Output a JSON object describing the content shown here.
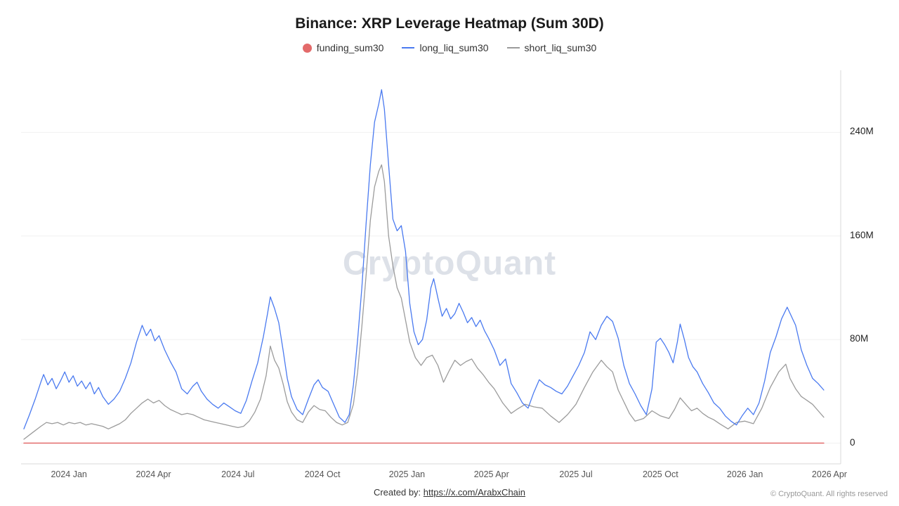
{
  "title": "Binance: XRP Leverage Heatmap (Sum 30D)",
  "watermark": "CryptoQuant",
  "legend": [
    {
      "label": "funding_sum30",
      "color": "#e36a6a",
      "marker": "circle"
    },
    {
      "label": "long_liq_sum30",
      "color": "#4a7af0",
      "marker": "line"
    },
    {
      "label": "short_liq_sum30",
      "color": "#9b9b9b",
      "marker": "line"
    }
  ],
  "footer": {
    "created_by_prefix": "Created by:",
    "created_by_link": "https://x.com/ArabxChain",
    "copyright": "© CryptoQuant. All rights reserved"
  },
  "chart_data": {
    "type": "line",
    "title": "Binance: XRP Leverage Heatmap (Sum 30D)",
    "x_unit": "months since 2023-11",
    "xlim": [
      0.3,
      29.4
    ],
    "ylim": [
      -16,
      288
    ],
    "grid": true,
    "legend_position": "top",
    "y_axis_side": "right",
    "y_ticks": [
      {
        "value": 0,
        "label": "0"
      },
      {
        "value": 80,
        "label": "80M"
      },
      {
        "value": 160,
        "label": "160M"
      },
      {
        "value": 240,
        "label": "240M"
      }
    ],
    "x_tick_positions": [
      2,
      5,
      8,
      11,
      14,
      17,
      20,
      23,
      26,
      29
    ],
    "x_tick_labels": [
      "2024 Jan",
      "2024 Apr",
      "2024 Jul",
      "2024 Oct",
      "2025 Jan",
      "2025 Apr",
      "2025 Jul",
      "2025 Oct",
      "2026 Jan",
      "2026 Apr"
    ],
    "value_unit": "M",
    "series": [
      {
        "name": "funding_sum30",
        "color": "#e36a6a",
        "width": 1.5,
        "points": [
          [
            0.4,
            0
          ],
          [
            28.8,
            0
          ]
        ]
      },
      {
        "name": "long_liq_sum30",
        "color": "#4a7af0",
        "width": 1.3,
        "points": [
          [
            0.4,
            11
          ],
          [
            0.6,
            22
          ],
          [
            0.8,
            34
          ],
          [
            1.0,
            47
          ],
          [
            1.1,
            53
          ],
          [
            1.25,
            45
          ],
          [
            1.4,
            50
          ],
          [
            1.55,
            42
          ],
          [
            1.7,
            48
          ],
          [
            1.85,
            55
          ],
          [
            2.0,
            47
          ],
          [
            2.15,
            52
          ],
          [
            2.3,
            44
          ],
          [
            2.45,
            48
          ],
          [
            2.6,
            42
          ],
          [
            2.75,
            47
          ],
          [
            2.9,
            38
          ],
          [
            3.05,
            43
          ],
          [
            3.2,
            36
          ],
          [
            3.4,
            30
          ],
          [
            3.6,
            34
          ],
          [
            3.8,
            40
          ],
          [
            4.0,
            50
          ],
          [
            4.2,
            62
          ],
          [
            4.4,
            78
          ],
          [
            4.6,
            91
          ],
          [
            4.75,
            83
          ],
          [
            4.9,
            88
          ],
          [
            5.05,
            79
          ],
          [
            5.2,
            83
          ],
          [
            5.4,
            72
          ],
          [
            5.6,
            63
          ],
          [
            5.8,
            55
          ],
          [
            6.0,
            42
          ],
          [
            6.2,
            38
          ],
          [
            6.4,
            44
          ],
          [
            6.55,
            47
          ],
          [
            6.7,
            40
          ],
          [
            6.9,
            34
          ],
          [
            7.1,
            30
          ],
          [
            7.3,
            27
          ],
          [
            7.5,
            31
          ],
          [
            7.7,
            28
          ],
          [
            7.9,
            25
          ],
          [
            8.1,
            23
          ],
          [
            8.3,
            33
          ],
          [
            8.5,
            48
          ],
          [
            8.7,
            62
          ],
          [
            8.9,
            82
          ],
          [
            9.05,
            100
          ],
          [
            9.15,
            113
          ],
          [
            9.3,
            104
          ],
          [
            9.45,
            93
          ],
          [
            9.6,
            72
          ],
          [
            9.75,
            50
          ],
          [
            9.9,
            36
          ],
          [
            10.1,
            26
          ],
          [
            10.3,
            22
          ],
          [
            10.5,
            34
          ],
          [
            10.7,
            45
          ],
          [
            10.85,
            49
          ],
          [
            11.0,
            43
          ],
          [
            11.2,
            40
          ],
          [
            11.4,
            30
          ],
          [
            11.6,
            20
          ],
          [
            11.8,
            16
          ],
          [
            11.95,
            22
          ],
          [
            12.1,
            45
          ],
          [
            12.25,
            80
          ],
          [
            12.4,
            120
          ],
          [
            12.55,
            170
          ],
          [
            12.7,
            215
          ],
          [
            12.85,
            248
          ],
          [
            13.0,
            262
          ],
          [
            13.1,
            273
          ],
          [
            13.2,
            258
          ],
          [
            13.35,
            215
          ],
          [
            13.5,
            173
          ],
          [
            13.65,
            164
          ],
          [
            13.8,
            168
          ],
          [
            13.95,
            148
          ],
          [
            14.1,
            108
          ],
          [
            14.25,
            86
          ],
          [
            14.4,
            76
          ],
          [
            14.55,
            80
          ],
          [
            14.7,
            95
          ],
          [
            14.85,
            120
          ],
          [
            14.95,
            127
          ],
          [
            15.1,
            112
          ],
          [
            15.25,
            98
          ],
          [
            15.4,
            104
          ],
          [
            15.55,
            96
          ],
          [
            15.7,
            100
          ],
          [
            15.85,
            108
          ],
          [
            16.0,
            101
          ],
          [
            16.15,
            93
          ],
          [
            16.3,
            97
          ],
          [
            16.45,
            90
          ],
          [
            16.6,
            95
          ],
          [
            16.75,
            87
          ],
          [
            16.9,
            81
          ],
          [
            17.1,
            72
          ],
          [
            17.3,
            60
          ],
          [
            17.5,
            65
          ],
          [
            17.7,
            46
          ],
          [
            17.9,
            39
          ],
          [
            18.1,
            31
          ],
          [
            18.3,
            27
          ],
          [
            18.5,
            39
          ],
          [
            18.7,
            49
          ],
          [
            18.9,
            45
          ],
          [
            19.1,
            43
          ],
          [
            19.3,
            40
          ],
          [
            19.5,
            38
          ],
          [
            19.7,
            44
          ],
          [
            19.9,
            52
          ],
          [
            20.1,
            60
          ],
          [
            20.3,
            70
          ],
          [
            20.5,
            86
          ],
          [
            20.7,
            80
          ],
          [
            20.9,
            91
          ],
          [
            21.1,
            98
          ],
          [
            21.3,
            94
          ],
          [
            21.5,
            81
          ],
          [
            21.7,
            60
          ],
          [
            21.9,
            46
          ],
          [
            22.1,
            38
          ],
          [
            22.3,
            29
          ],
          [
            22.5,
            22
          ],
          [
            22.7,
            42
          ],
          [
            22.85,
            78
          ],
          [
            23.0,
            81
          ],
          [
            23.15,
            76
          ],
          [
            23.3,
            70
          ],
          [
            23.45,
            62
          ],
          [
            23.6,
            78
          ],
          [
            23.7,
            92
          ],
          [
            23.85,
            80
          ],
          [
            24.0,
            66
          ],
          [
            24.15,
            59
          ],
          [
            24.3,
            55
          ],
          [
            24.5,
            46
          ],
          [
            24.7,
            39
          ],
          [
            24.9,
            31
          ],
          [
            25.1,
            27
          ],
          [
            25.3,
            21
          ],
          [
            25.5,
            17
          ],
          [
            25.7,
            14
          ],
          [
            25.9,
            21
          ],
          [
            26.1,
            27
          ],
          [
            26.3,
            22
          ],
          [
            26.5,
            31
          ],
          [
            26.7,
            48
          ],
          [
            26.9,
            70
          ],
          [
            27.1,
            82
          ],
          [
            27.3,
            96
          ],
          [
            27.5,
            105
          ],
          [
            27.65,
            98
          ],
          [
            27.8,
            91
          ],
          [
            28.0,
            72
          ],
          [
            28.2,
            60
          ],
          [
            28.4,
            50
          ],
          [
            28.6,
            46
          ],
          [
            28.8,
            41
          ]
        ]
      },
      {
        "name": "short_liq_sum30",
        "color": "#9b9b9b",
        "width": 1.3,
        "points": [
          [
            0.4,
            3
          ],
          [
            0.7,
            8
          ],
          [
            1.0,
            13
          ],
          [
            1.2,
            16
          ],
          [
            1.4,
            15
          ],
          [
            1.6,
            16
          ],
          [
            1.8,
            14
          ],
          [
            2.0,
            16
          ],
          [
            2.2,
            15
          ],
          [
            2.4,
            16
          ],
          [
            2.6,
            14
          ],
          [
            2.8,
            15
          ],
          [
            3.0,
            14
          ],
          [
            3.2,
            13
          ],
          [
            3.4,
            11
          ],
          [
            3.6,
            13
          ],
          [
            3.8,
            15
          ],
          [
            4.0,
            18
          ],
          [
            4.2,
            23
          ],
          [
            4.4,
            27
          ],
          [
            4.6,
            31
          ],
          [
            4.8,
            34
          ],
          [
            5.0,
            31
          ],
          [
            5.2,
            33
          ],
          [
            5.4,
            29
          ],
          [
            5.6,
            26
          ],
          [
            5.8,
            24
          ],
          [
            6.0,
            22
          ],
          [
            6.2,
            23
          ],
          [
            6.4,
            22
          ],
          [
            6.6,
            20
          ],
          [
            6.8,
            18
          ],
          [
            7.0,
            17
          ],
          [
            7.2,
            16
          ],
          [
            7.4,
            15
          ],
          [
            7.6,
            14
          ],
          [
            7.8,
            13
          ],
          [
            8.0,
            12
          ],
          [
            8.2,
            13
          ],
          [
            8.4,
            17
          ],
          [
            8.6,
            24
          ],
          [
            8.8,
            34
          ],
          [
            9.0,
            52
          ],
          [
            9.15,
            75
          ],
          [
            9.3,
            64
          ],
          [
            9.45,
            58
          ],
          [
            9.6,
            46
          ],
          [
            9.75,
            32
          ],
          [
            9.9,
            24
          ],
          [
            10.1,
            18
          ],
          [
            10.3,
            16
          ],
          [
            10.5,
            24
          ],
          [
            10.7,
            29
          ],
          [
            10.9,
            26
          ],
          [
            11.1,
            25
          ],
          [
            11.3,
            20
          ],
          [
            11.5,
            16
          ],
          [
            11.7,
            14
          ],
          [
            11.9,
            16
          ],
          [
            12.1,
            30
          ],
          [
            12.25,
            55
          ],
          [
            12.4,
            90
          ],
          [
            12.55,
            130
          ],
          [
            12.7,
            172
          ],
          [
            12.85,
            198
          ],
          [
            13.0,
            210
          ],
          [
            13.1,
            215
          ],
          [
            13.2,
            202
          ],
          [
            13.35,
            160
          ],
          [
            13.5,
            137
          ],
          [
            13.65,
            120
          ],
          [
            13.8,
            112
          ],
          [
            13.95,
            95
          ],
          [
            14.1,
            78
          ],
          [
            14.3,
            66
          ],
          [
            14.5,
            60
          ],
          [
            14.7,
            66
          ],
          [
            14.9,
            68
          ],
          [
            15.1,
            60
          ],
          [
            15.3,
            47
          ],
          [
            15.5,
            56
          ],
          [
            15.7,
            64
          ],
          [
            15.9,
            60
          ],
          [
            16.1,
            63
          ],
          [
            16.3,
            65
          ],
          [
            16.5,
            58
          ],
          [
            16.7,
            53
          ],
          [
            16.9,
            47
          ],
          [
            17.1,
            42
          ],
          [
            17.4,
            31
          ],
          [
            17.7,
            23
          ],
          [
            17.9,
            26
          ],
          [
            18.2,
            30
          ],
          [
            18.5,
            28
          ],
          [
            18.8,
            27
          ],
          [
            19.1,
            21
          ],
          [
            19.4,
            16
          ],
          [
            19.7,
            22
          ],
          [
            20.0,
            30
          ],
          [
            20.3,
            43
          ],
          [
            20.6,
            55
          ],
          [
            20.9,
            64
          ],
          [
            21.1,
            59
          ],
          [
            21.3,
            55
          ],
          [
            21.5,
            41
          ],
          [
            21.7,
            32
          ],
          [
            21.9,
            23
          ],
          [
            22.1,
            17
          ],
          [
            22.4,
            19
          ],
          [
            22.7,
            25
          ],
          [
            23.0,
            21
          ],
          [
            23.3,
            19
          ],
          [
            23.5,
            26
          ],
          [
            23.7,
            35
          ],
          [
            23.9,
            30
          ],
          [
            24.1,
            25
          ],
          [
            24.3,
            27
          ],
          [
            24.5,
            23
          ],
          [
            24.7,
            20
          ],
          [
            24.9,
            18
          ],
          [
            25.1,
            15
          ],
          [
            25.4,
            11
          ],
          [
            25.7,
            16
          ],
          [
            26.0,
            17
          ],
          [
            26.3,
            15
          ],
          [
            26.6,
            27
          ],
          [
            26.9,
            43
          ],
          [
            27.2,
            55
          ],
          [
            27.45,
            61
          ],
          [
            27.6,
            50
          ],
          [
            27.8,
            42
          ],
          [
            28.0,
            36
          ],
          [
            28.2,
            33
          ],
          [
            28.4,
            30
          ],
          [
            28.6,
            25
          ],
          [
            28.8,
            20
          ]
        ]
      }
    ]
  }
}
